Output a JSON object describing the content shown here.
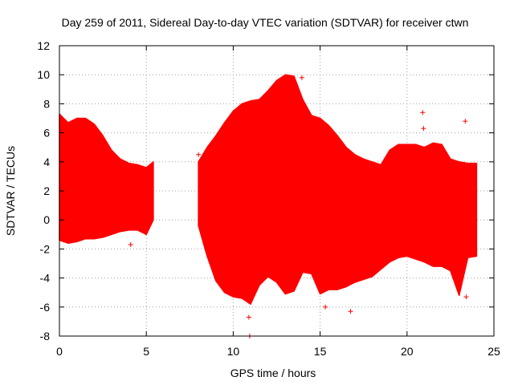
{
  "chart_data": {
    "type": "area",
    "title": "Day 259 of 2011, Sidereal Day-to-day VTEC variation (SDTVAR) for receiver ctwn",
    "xlabel": "GPS time / hours",
    "ylabel": "SDTVAR / TECUs",
    "xlim": [
      0,
      25
    ],
    "ylim": [
      -8,
      12
    ],
    "xticks": [
      0,
      5,
      10,
      15,
      20,
      25
    ],
    "yticks": [
      -8,
      -6,
      -4,
      -2,
      0,
      2,
      4,
      6,
      8,
      10,
      12
    ],
    "grid": true,
    "series": [
      {
        "name": "SDTVAR",
        "color": "#ff0000",
        "segments": [
          {
            "x": [
              0.0,
              0.5,
              1.0,
              1.5,
              2.0,
              2.5,
              3.0,
              3.5,
              4.0,
              4.5,
              5.0,
              5.4
            ],
            "upper": [
              7.3,
              6.7,
              7.0,
              7.0,
              6.6,
              5.8,
              4.8,
              4.2,
              3.9,
              3.8,
              3.6,
              4.0
            ],
            "lower": [
              -1.4,
              -1.6,
              -1.5,
              -1.3,
              -1.3,
              -1.2,
              -1.0,
              -0.8,
              -0.7,
              -0.7,
              -1.0,
              0.0
            ]
          },
          {
            "x": [
              8.0,
              8.5,
              9.0,
              9.5,
              10.0,
              10.5,
              11.0,
              11.5,
              12.0,
              12.5,
              13.0,
              13.5,
              14.0,
              14.5,
              15.0,
              15.5,
              16.0,
              16.5,
              17.0,
              17.5,
              18.0,
              18.5,
              19.0,
              19.5,
              20.0,
              20.5,
              21.0,
              21.5,
              22.0,
              22.5,
              23.0,
              23.5,
              24.0
            ],
            "upper": [
              4.0,
              5.0,
              5.8,
              6.7,
              7.5,
              8.0,
              8.2,
              8.3,
              8.9,
              9.6,
              10.0,
              9.9,
              8.3,
              7.2,
              7.0,
              6.5,
              5.8,
              5.0,
              4.5,
              4.2,
              4.0,
              3.8,
              4.8,
              5.2,
              5.2,
              5.2,
              5.0,
              5.3,
              5.2,
              4.2,
              4.0,
              3.9,
              3.9
            ],
            "lower": [
              -0.4,
              -2.5,
              -4.2,
              -5.0,
              -5.3,
              -5.4,
              -5.8,
              -4.5,
              -3.9,
              -4.3,
              -5.1,
              -4.9,
              -3.6,
              -3.7,
              -5.1,
              -4.8,
              -4.8,
              -4.6,
              -4.3,
              -4.1,
              -3.9,
              -3.4,
              -2.9,
              -2.6,
              -2.5,
              -2.7,
              -2.9,
              -3.2,
              -3.2,
              -3.5,
              -5.2,
              -2.6,
              -2.5
            ]
          }
        ]
      }
    ],
    "outliers": [
      {
        "x": 4.1,
        "y": -1.7
      },
      {
        "x": 8.0,
        "y": 4.5
      },
      {
        "x": 10.9,
        "y": -6.7
      },
      {
        "x": 10.95,
        "y": -8.0
      },
      {
        "x": 13.95,
        "y": 9.8
      },
      {
        "x": 15.3,
        "y": -6.0
      },
      {
        "x": 16.75,
        "y": -6.3
      },
      {
        "x": 20.9,
        "y": 7.4
      },
      {
        "x": 20.95,
        "y": 6.3
      },
      {
        "x": 23.35,
        "y": 6.8
      },
      {
        "x": 23.4,
        "y": -5.3
      }
    ]
  }
}
